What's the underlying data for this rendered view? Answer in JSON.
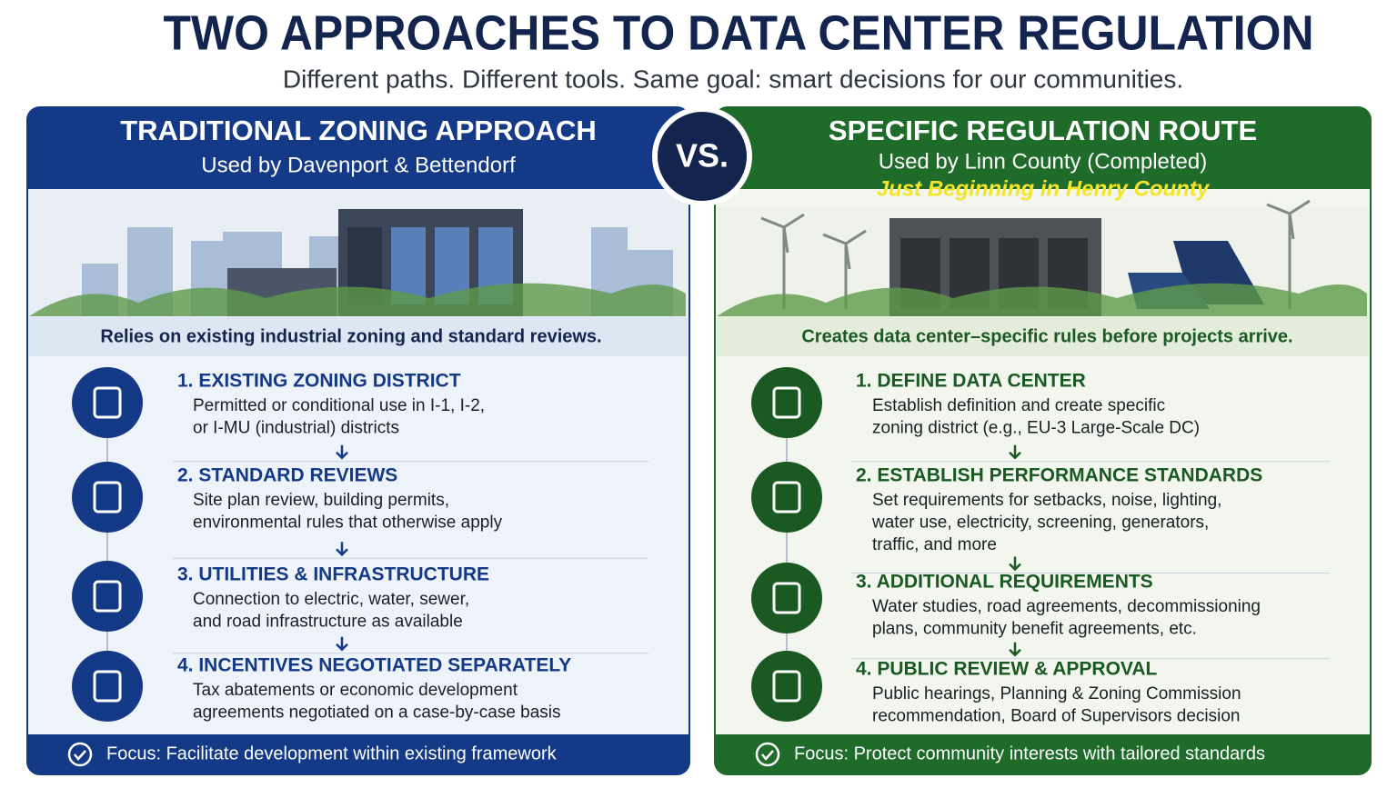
{
  "header": {
    "title": "TWO APPROACHES TO DATA CENTER REGULATION",
    "subtitle": "Different paths. Different tools. Same goal: smart decisions for our communities."
  },
  "vs": "VS.",
  "panels": [
    {
      "title": "TRADITIONAL ZONING APPROACH",
      "subtitle": "Used by Davenport & Bettendorf",
      "intro": "Relies on existing industrial zoning and standard reviews.",
      "steps": [
        {
          "title": "1. EXISTING ZONING DISTRICT",
          "lines": [
            "Permitted or conditional use in I-1, I-2,",
            "or I-MU (industrial) districts"
          ]
        },
        {
          "title": "2. STANDARD REVIEWS",
          "lines": [
            "Site plan review, building permits,",
            "environmental rules that otherwise apply"
          ]
        },
        {
          "title": "3. UTILITIES & INFRASTRUCTURE",
          "lines": [
            "Connection to electric, water, sewer,",
            "and road infrastructure as available"
          ]
        },
        {
          "title": "4. INCENTIVES NEGOTIATED SEPARATELY",
          "lines": [
            "Tax abatements or economic development",
            "agreements negotiated on a case-by-case basis"
          ]
        }
      ],
      "focus": "Focus: Facilitate development within existing framework"
    },
    {
      "title": "SPECIFIC REGULATION ROUTE",
      "subtitle": "Used by Linn County (Completed)",
      "note": "Just Beginning in Henry County",
      "intro": "Creates data center–specific rules before projects arrive.",
      "steps": [
        {
          "title": "1. DEFINE DATA CENTER",
          "lines": [
            "Establish definition and create specific",
            "zoning district (e.g., EU-3 Large-Scale DC)"
          ]
        },
        {
          "title": "2. ESTABLISH PERFORMANCE STANDARDS",
          "lines": [
            "Set requirements for setbacks, noise, lighting,",
            "water use, electricity, screening, generators,",
            "traffic, and more"
          ]
        },
        {
          "title": "3. ADDITIONAL REQUIREMENTS",
          "lines": [
            "Water studies, road agreements, decommissioning",
            "plans, community benefit agreements, etc."
          ]
        },
        {
          "title": "4. PUBLIC REVIEW & APPROVAL",
          "lines": [
            "Public hearings, Planning & Zoning Commission",
            "recommendation, Board of Supervisors decision"
          ]
        }
      ],
      "focus": "Focus: Protect community interests with tailored standards"
    }
  ]
}
